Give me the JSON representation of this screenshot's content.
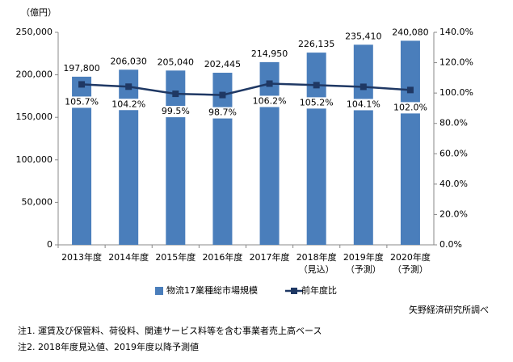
{
  "chart_data": {
    "type": "bar-line",
    "y_unit": "（億円）",
    "categories": [
      [
        "2013年度"
      ],
      [
        "2014年度"
      ],
      [
        "2015年度"
      ],
      [
        "2016年度"
      ],
      [
        "2017年度"
      ],
      [
        "2018年度",
        "（見込）"
      ],
      [
        "2019年度",
        "（予測）"
      ],
      [
        "2020年度",
        "（予測）"
      ]
    ],
    "series": [
      {
        "name": "物流17業種総市場規模",
        "color": "#4a7ebb",
        "type": "bar",
        "axis": "y",
        "values": [
          197800,
          206030,
          205040,
          202445,
          214950,
          226135,
          235410,
          240080
        ],
        "value_labels": [
          "197,800",
          "206,030",
          "205,040",
          "202,445",
          "214,950",
          "226,135",
          "235,410",
          "240,080"
        ]
      },
      {
        "name": "前年度比",
        "color": "#1f3864",
        "type": "line",
        "axis": "y2",
        "values": [
          105.7,
          104.2,
          99.5,
          98.7,
          106.2,
          105.2,
          104.1,
          102.0
        ],
        "value_labels": [
          "105.7%",
          "104.2%",
          "99.5%",
          "98.7%",
          "106.2%",
          "105.2%",
          "104.1%",
          "102.0%"
        ]
      }
    ],
    "ylim": [
      0,
      250000
    ],
    "yticks": [
      0,
      {
        "value": 50000,
        "label": "50,000"
      },
      {
        "value": 100000,
        "label": "100,000"
      },
      {
        "value": 150000,
        "label": "150,000"
      },
      {
        "value": 200000,
        "label": "200,000"
      },
      {
        "value": 250000,
        "label": "250,000"
      }
    ],
    "y2lim": [
      0,
      140
    ],
    "y2ticks": [
      {
        "value": 0,
        "label": "0.0%"
      },
      {
        "value": 20,
        "label": "20.0%"
      },
      {
        "value": 40,
        "label": "40.0%"
      },
      {
        "value": 60,
        "label": "60.0%"
      },
      {
        "value": 80,
        "label": "80.0%"
      },
      {
        "value": 100,
        "label": "100.0%"
      },
      {
        "value": 120,
        "label": "120.0%"
      },
      {
        "value": 140,
        "label": "140.0%"
      }
    ],
    "legend": "bottom",
    "source": "矢野経済研究所調べ",
    "notes": [
      "注1. 運賃及び保管料、荷役料、関連サービス料等を含む事業者売上高ベース",
      "注2. 2018年度見込値、2019年度以降予測値"
    ]
  }
}
